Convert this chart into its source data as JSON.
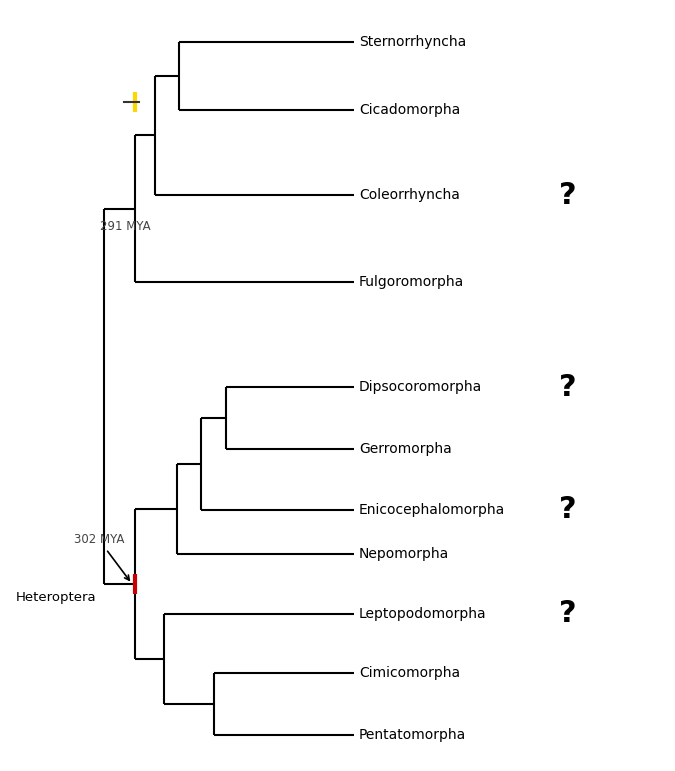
{
  "taxa": [
    "Sternorrhyncha",
    "Cicadomorpha",
    "Coleorrhyncha",
    "Fulgoromorpha",
    "Dipsocoromorpha",
    "Gerromorpha",
    "Enicocephalomorpha",
    "Nepomorpha",
    "Leptopodomorpha",
    "Cimicomorpha",
    "Pentatomorpha"
  ],
  "question_mark": [
    false,
    false,
    true,
    false,
    true,
    false,
    true,
    false,
    true,
    false,
    false
  ],
  "background_color": "#ffffff",
  "line_color": "#000000",
  "line_width": 1.5,
  "font_size": 10,
  "label_291_mya": "291 MYA",
  "label_302_mya": "302 MYA",
  "label_heteroptera": "Heteroptera",
  "yellow_color": "#FFD700",
  "red_color": "#cc0000",
  "question_fontsize": 22,
  "annotation_fontsize": 8.5
}
